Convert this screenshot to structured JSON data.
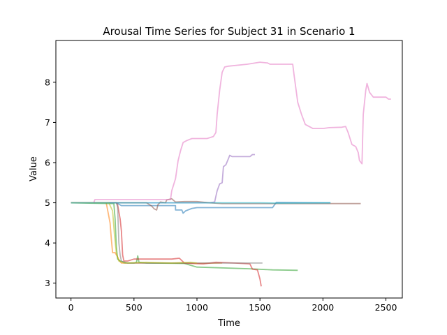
{
  "chart_data": {
    "type": "line",
    "title": "Arousal Time Series for Subject 31 in Scenario 1",
    "xlabel": "Time",
    "ylabel": "Value",
    "xlim": [
      -120,
      2630
    ],
    "ylim": [
      2.63,
      9.04
    ],
    "xticks": [
      0,
      500,
      1000,
      1500,
      2000,
      2500
    ],
    "yticks": [
      3,
      4,
      5,
      6,
      7,
      8
    ],
    "grid": false,
    "legend": "none",
    "series": [
      {
        "color": "#1f77b4",
        "points": [
          [
            0,
            5.0
          ],
          [
            360,
            5.0
          ],
          [
            400,
            4.93
          ],
          [
            800,
            4.93
          ],
          [
            830,
            4.93
          ],
          [
            830,
            4.82
          ],
          [
            880,
            4.82
          ],
          [
            890,
            4.74
          ],
          [
            910,
            4.8
          ],
          [
            960,
            4.86
          ],
          [
            1000,
            4.88
          ],
          [
            1600,
            4.88
          ],
          [
            1630,
            5.01
          ],
          [
            2060,
            5.0
          ]
        ]
      },
      {
        "color": "#ff7f0e",
        "points": [
          [
            0,
            5.0
          ],
          [
            280,
            5.0
          ],
          [
            310,
            4.5
          ],
          [
            320,
            4.1
          ],
          [
            330,
            3.76
          ],
          [
            350,
            3.76
          ],
          [
            370,
            3.65
          ],
          [
            380,
            3.58
          ],
          [
            400,
            3.5
          ],
          [
            800,
            3.5
          ],
          [
            1000,
            3.49
          ],
          [
            1200,
            3.5
          ]
        ]
      },
      {
        "color": "#2ca02c",
        "points": [
          [
            0,
            5.0
          ],
          [
            340,
            4.98
          ],
          [
            350,
            4.6
          ],
          [
            360,
            3.9
          ],
          [
            370,
            3.6
          ],
          [
            390,
            3.55
          ],
          [
            450,
            3.5
          ],
          [
            500,
            3.5
          ],
          [
            520,
            3.52
          ],
          [
            530,
            3.68
          ],
          [
            540,
            3.52
          ],
          [
            600,
            3.5
          ],
          [
            900,
            3.49
          ],
          [
            1000,
            3.4
          ],
          [
            1400,
            3.36
          ],
          [
            1600,
            3.33
          ],
          [
            1800,
            3.32
          ]
        ]
      },
      {
        "color": "#d62728",
        "points": [
          [
            0,
            5.0
          ],
          [
            360,
            5.0
          ],
          [
            370,
            4.95
          ],
          [
            390,
            4.6
          ],
          [
            400,
            4.3
          ],
          [
            410,
            3.7
          ],
          [
            420,
            3.55
          ],
          [
            450,
            3.55
          ],
          [
            500,
            3.6
          ],
          [
            800,
            3.6
          ],
          [
            860,
            3.62
          ],
          [
            900,
            3.5
          ],
          [
            1050,
            3.48
          ],
          [
            1150,
            3.52
          ],
          [
            1300,
            3.5
          ],
          [
            1420,
            3.48
          ],
          [
            1440,
            3.35
          ],
          [
            1480,
            3.33
          ],
          [
            1500,
            3.1
          ],
          [
            1510,
            2.92
          ]
        ]
      },
      {
        "color": "#9467bd",
        "points": [
          [
            0,
            5.0
          ],
          [
            1100,
            5.0
          ],
          [
            1140,
            5.02
          ],
          [
            1160,
            5.3
          ],
          [
            1180,
            5.47
          ],
          [
            1200,
            5.5
          ],
          [
            1210,
            5.9
          ],
          [
            1230,
            5.95
          ],
          [
            1250,
            6.1
          ],
          [
            1260,
            6.18
          ],
          [
            1280,
            6.15
          ],
          [
            1420,
            6.15
          ],
          [
            1440,
            6.2
          ],
          [
            1460,
            6.2
          ]
        ]
      },
      {
        "color": "#8c564b",
        "points": [
          [
            0,
            5.0
          ],
          [
            400,
            5.0
          ],
          [
            600,
            5.0
          ],
          [
            640,
            4.92
          ],
          [
            660,
            4.85
          ],
          [
            680,
            4.82
          ],
          [
            690,
            4.95
          ],
          [
            710,
            5.02
          ],
          [
            750,
            5.0
          ],
          [
            760,
            5.07
          ],
          [
            800,
            5.1
          ],
          [
            830,
            5.02
          ],
          [
            900,
            5.03
          ],
          [
            1000,
            5.03
          ],
          [
            1100,
            5.0
          ],
          [
            1200,
            4.98
          ],
          [
            2300,
            4.98
          ]
        ]
      },
      {
        "color": "#e377c2",
        "points": [
          [
            0,
            5.0
          ],
          [
            180,
            5.0
          ],
          [
            190,
            5.08
          ],
          [
            600,
            5.08
          ],
          [
            790,
            5.08
          ],
          [
            800,
            5.3
          ],
          [
            830,
            5.6
          ],
          [
            850,
            6.05
          ],
          [
            870,
            6.3
          ],
          [
            890,
            6.5
          ],
          [
            920,
            6.55
          ],
          [
            960,
            6.6
          ],
          [
            1080,
            6.6
          ],
          [
            1130,
            6.65
          ],
          [
            1150,
            6.75
          ],
          [
            1160,
            7.2
          ],
          [
            1180,
            7.8
          ],
          [
            1200,
            8.25
          ],
          [
            1220,
            8.38
          ],
          [
            1250,
            8.4
          ],
          [
            1400,
            8.45
          ],
          [
            1500,
            8.5
          ],
          [
            1560,
            8.48
          ],
          [
            1580,
            8.45
          ],
          [
            1760,
            8.45
          ],
          [
            1770,
            8.2
          ],
          [
            1800,
            7.5
          ],
          [
            1830,
            7.2
          ],
          [
            1860,
            6.95
          ],
          [
            1920,
            6.85
          ],
          [
            2000,
            6.85
          ],
          [
            2050,
            6.87
          ],
          [
            2150,
            6.88
          ],
          [
            2180,
            6.9
          ],
          [
            2200,
            6.75
          ],
          [
            2230,
            6.45
          ],
          [
            2260,
            6.4
          ],
          [
            2280,
            6.25
          ],
          [
            2290,
            6.05
          ],
          [
            2310,
            5.97
          ],
          [
            2320,
            7.2
          ],
          [
            2340,
            7.8
          ],
          [
            2350,
            7.97
          ],
          [
            2370,
            7.75
          ],
          [
            2400,
            7.63
          ],
          [
            2450,
            7.63
          ],
          [
            2500,
            7.63
          ],
          [
            2520,
            7.58
          ],
          [
            2540,
            7.58
          ]
        ]
      },
      {
        "color": "#7f7f7f",
        "points": [
          [
            0,
            5.0
          ],
          [
            360,
            5.0
          ],
          [
            370,
            4.9
          ],
          [
            380,
            4.0
          ],
          [
            390,
            3.7
          ],
          [
            400,
            3.55
          ],
          [
            430,
            3.5
          ],
          [
            500,
            3.5
          ],
          [
            900,
            3.5
          ],
          [
            1000,
            3.5
          ],
          [
            1500,
            3.5
          ],
          [
            1520,
            3.5
          ]
        ]
      },
      {
        "color": "#bcbd22",
        "points": [
          [
            0,
            5.0
          ],
          [
            300,
            5.0
          ],
          [
            330,
            4.8
          ],
          [
            345,
            4.2
          ],
          [
            360,
            3.75
          ],
          [
            380,
            3.55
          ],
          [
            420,
            3.5
          ],
          [
            600,
            3.52
          ],
          [
            800,
            3.5
          ],
          [
            950,
            3.52
          ],
          [
            1000,
            3.5
          ]
        ]
      },
      {
        "color": "#17becf",
        "points": [
          [
            0,
            5.0
          ],
          [
            1500,
            5.0
          ],
          [
            1650,
            4.99
          ],
          [
            2060,
            5.0
          ]
        ]
      }
    ]
  }
}
